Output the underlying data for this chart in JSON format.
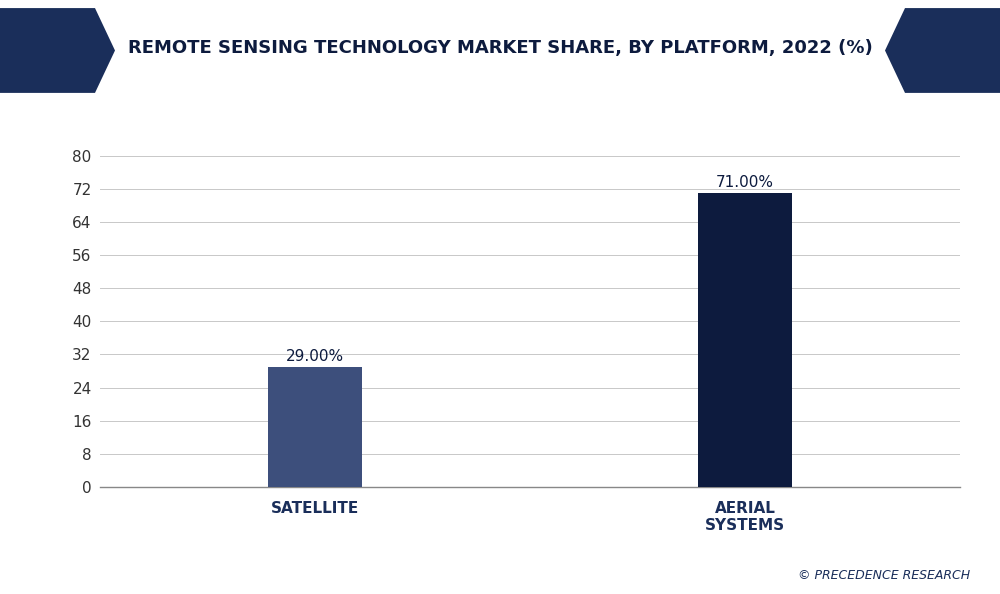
{
  "title": "REMOTE SENSING TECHNOLOGY MARKET SHARE, BY PLATFORM, 2022 (%)",
  "categories": [
    "SATELLITE",
    "AERIAL\nSYSTEMS"
  ],
  "values": [
    29.0,
    71.0
  ],
  "labels": [
    "29.00%",
    "71.00%"
  ],
  "bar_colors": [
    "#3d4f7c",
    "#0d1b3e"
  ],
  "background_color": "#ffffff",
  "plot_bg_color": "#ffffff",
  "title_color": "#0d1b3e",
  "yticks": [
    0,
    8,
    16,
    24,
    32,
    40,
    48,
    56,
    64,
    72,
    80
  ],
  "ylim": [
    0,
    86
  ],
  "grid_color": "#c8c8c8",
  "label_fontsize": 11,
  "tick_label_fontsize": 11,
  "title_fontsize": 13,
  "watermark": "© PRECEDENCE RESEARCH",
  "watermark_color": "#1a2e5a",
  "header_bg": "#f0f0f0",
  "chevron_color": "#1a2e5a"
}
